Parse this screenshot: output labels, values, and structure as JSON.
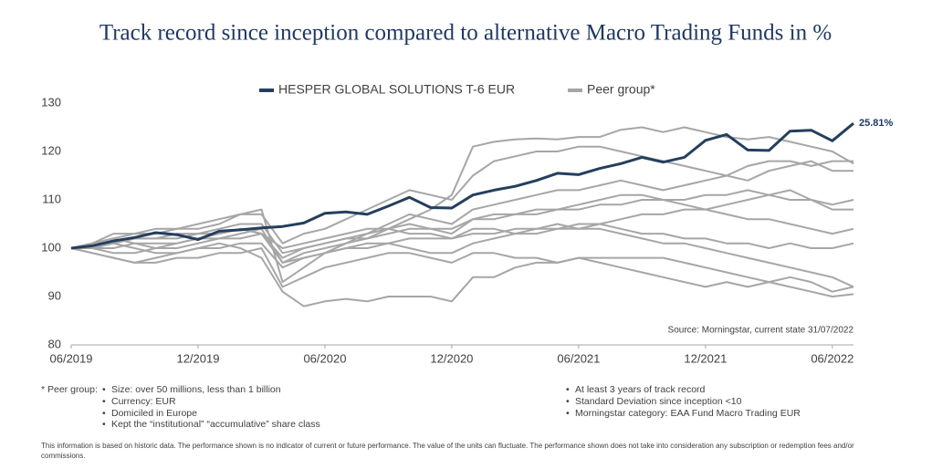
{
  "chart_data": {
    "type": "line",
    "title": "Track record since inception compared to alternative Macro Trading Funds in %",
    "categories": [
      "06/2019",
      "07/2019",
      "08/2019",
      "09/2019",
      "10/2019",
      "11/2019",
      "12/2019",
      "01/2020",
      "02/2020",
      "03/2020",
      "04/2020",
      "05/2020",
      "06/2020",
      "07/2020",
      "08/2020",
      "09/2020",
      "10/2020",
      "11/2020",
      "12/2020",
      "01/2021",
      "02/2021",
      "03/2021",
      "04/2021",
      "05/2021",
      "06/2021",
      "07/2021",
      "08/2021",
      "09/2021",
      "10/2021",
      "11/2021",
      "12/2021",
      "01/2022",
      "02/2022",
      "03/2022",
      "04/2022",
      "05/2022",
      "06/2022",
      "07/2022"
    ],
    "xticks": [
      "06/2019",
      "12/2019",
      "06/2020",
      "12/2020",
      "06/2021",
      "12/2021",
      "06/2022"
    ],
    "ylim": [
      80,
      130
    ],
    "yticks": [
      80,
      90,
      100,
      110,
      120,
      130
    ],
    "series": [
      {
        "name": "HESPER GLOBAL SOLUTIONS T-6 EUR",
        "color": "#243f5e",
        "values": [
          100,
          100.5,
          101.5,
          102.2,
          103.2,
          102.8,
          101.8,
          103.5,
          103.8,
          104.2,
          104.5,
          105.2,
          107.2,
          107.5,
          107,
          108.7,
          110.5,
          108.4,
          108.3,
          111,
          112,
          112.8,
          114,
          115.5,
          115.2,
          116.5,
          117.5,
          118.8,
          117.8,
          118.8,
          122.3,
          123.5,
          120.3,
          120.2,
          124.2,
          124.4,
          122.2,
          125.81
        ]
      }
    ],
    "end_label": "25.81%",
    "peer_group": {
      "name": "Peer group*",
      "color": "#a6a6a6",
      "series": [
        [
          100,
          101,
          102,
          101,
          100,
          101,
          102,
          103,
          104,
          103,
          97,
          99,
          100,
          101,
          102,
          104,
          106,
          108,
          111,
          121,
          122,
          122.5,
          122.7,
          122.5,
          123,
          123,
          124.5,
          125,
          124,
          125,
          124,
          123,
          122.5,
          123,
          122,
          121,
          120,
          117.5
        ],
        [
          100,
          99,
          98,
          97,
          98,
          99,
          100,
          101,
          100,
          98,
          91,
          88,
          89,
          89.5,
          89,
          90,
          90,
          90,
          89,
          94,
          94,
          96,
          97,
          97,
          98,
          97,
          96,
          95,
          94,
          93,
          92,
          93,
          92,
          93,
          92,
          91,
          90,
          90.5
        ],
        [
          100,
          101,
          102,
          103,
          104,
          104,
          105,
          106,
          107,
          107,
          101,
          103,
          104,
          106,
          108,
          110,
          112,
          111,
          110,
          115,
          118,
          119,
          120,
          120,
          121,
          121,
          120,
          119,
          118,
          117,
          116,
          115,
          114,
          116,
          117,
          118,
          116,
          116
        ],
        [
          100,
          100,
          99,
          99,
          100,
          100,
          101,
          102,
          103,
          104,
          97,
          98,
          99,
          100,
          100,
          101,
          100,
          99,
          99,
          101,
          102,
          103,
          104,
          105,
          104,
          104,
          103,
          102,
          101,
          101,
          100,
          99,
          98,
          97,
          96,
          95,
          94,
          92
        ],
        [
          100,
          101,
          101,
          102,
          102,
          103,
          103,
          104,
          105,
          105,
          99,
          100,
          101,
          102,
          102,
          103,
          104,
          104,
          104,
          106,
          107,
          107,
          108,
          108,
          109,
          110,
          111,
          111,
          110,
          109,
          108,
          109,
          110,
          111,
          112,
          110,
          108,
          108
        ],
        [
          100,
          100,
          101,
          100,
          99,
          99,
          100,
          100,
          101,
          101,
          96,
          98,
          99,
          100,
          101,
          101,
          102,
          102,
          102,
          103,
          103,
          104,
          104,
          104,
          105,
          105,
          106,
          107,
          107,
          108,
          108,
          107,
          106,
          106,
          105,
          104,
          103,
          104
        ],
        [
          100,
          101,
          103,
          103,
          103,
          104,
          104,
          105,
          107,
          108,
          93,
          96,
          99,
          101,
          103,
          105,
          107,
          106,
          105,
          108,
          109,
          110,
          111,
          112,
          112,
          113,
          114,
          113,
          112,
          113,
          114,
          115,
          117,
          118,
          118,
          117,
          118,
          118
        ],
        [
          100,
          99,
          98,
          97,
          97,
          98,
          98,
          99,
          99,
          100,
          92,
          94,
          96,
          97,
          98,
          99,
          99,
          98,
          97,
          99,
          99,
          98,
          98,
          97,
          98,
          98,
          98,
          98,
          98,
          97,
          96,
          95,
          94,
          93,
          94,
          93,
          91,
          92
        ],
        [
          100,
          100,
          100,
          101,
          101,
          101,
          102,
          102,
          102,
          103,
          98,
          100,
          101,
          102,
          103,
          104,
          105,
          104,
          103,
          106,
          106,
          107,
          107,
          108,
          108,
          109,
          109,
          110,
          110,
          110,
          111,
          111,
          112,
          111,
          110,
          110,
          109,
          110
        ],
        [
          100,
          101,
          101,
          102,
          102,
          102,
          103,
          103,
          104,
          103,
          100,
          101,
          102,
          103,
          104,
          104,
          103,
          103,
          102,
          104,
          104,
          103,
          103,
          104,
          104,
          105,
          104,
          103,
          103,
          102,
          102,
          101,
          101,
          100,
          101,
          100,
          100,
          101
        ]
      ]
    },
    "source": "Source: Morningstar, current state 31/07/2022"
  },
  "footnotes": {
    "label": "* Peer group:",
    "left": [
      "Size: over 50 millions, less than 1 billion",
      "Currency: EUR",
      "Domiciled in Europe",
      "Kept the “institutional” “accumulative” share class"
    ],
    "right": [
      "At least 3 years of track record",
      "Standard Deviation since inception <10",
      "Morningstar category: EAA Fund Macro Trading EUR"
    ],
    "disclaimer": "This information is based on historic data. The performance shown is no indicator of current or future performance. The value of the units can fluctuate. The performance shown does not take into consideration any subscription or redemption fees and/or commissions."
  }
}
